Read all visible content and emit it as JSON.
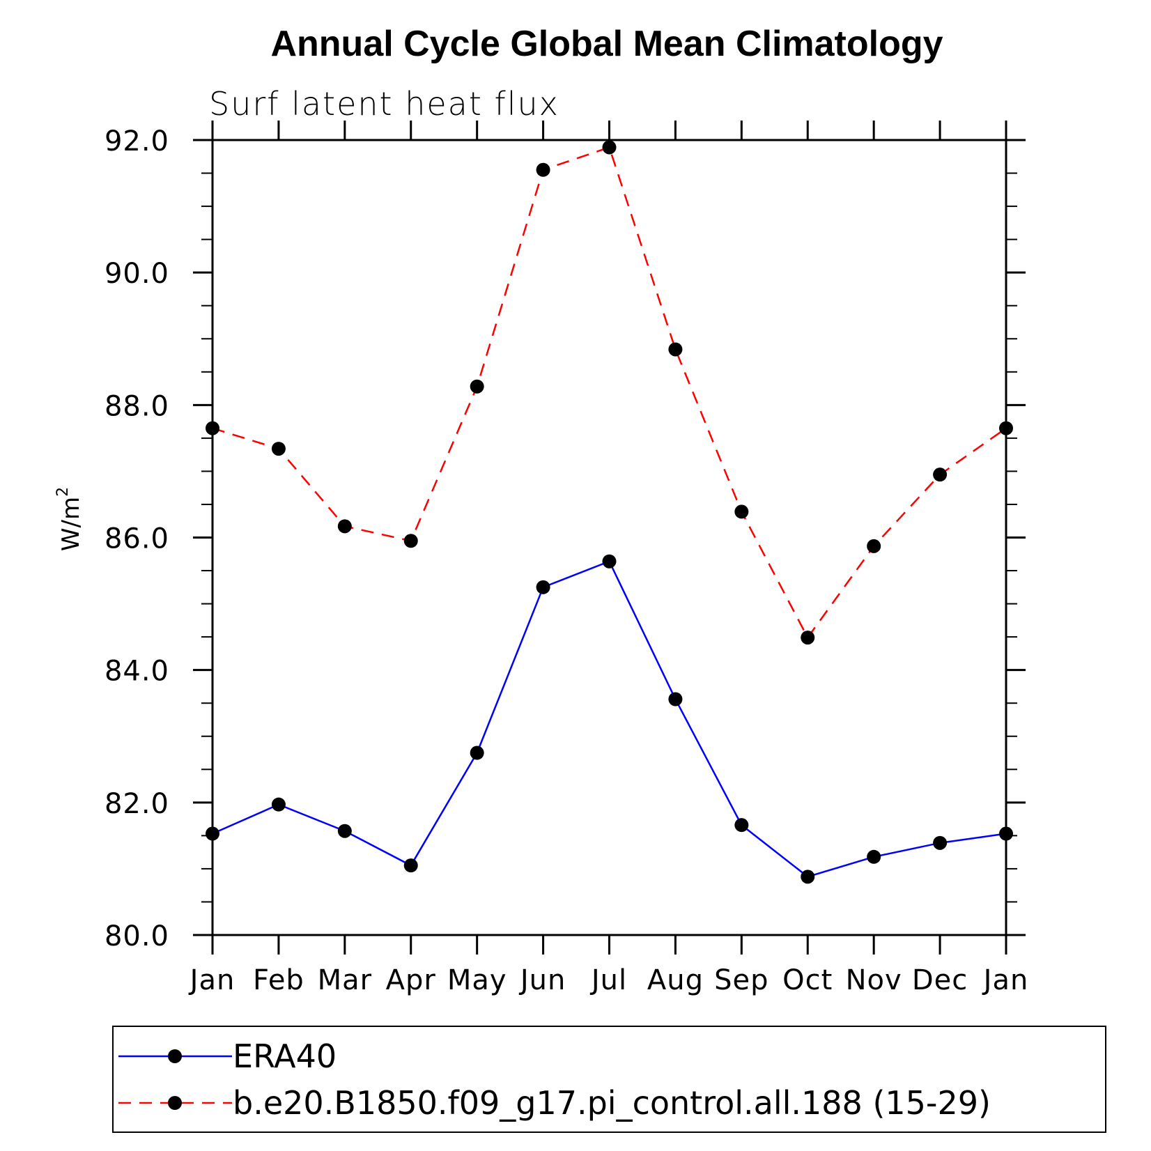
{
  "chart_data": {
    "type": "line",
    "title": "Annual Cycle Global Mean Climatology",
    "subtitle": "Surf latent heat flux",
    "ylabel_base": "W/m",
    "ylabel_sup": "2",
    "ylim": [
      80,
      92
    ],
    "y_major_ticks": [
      80,
      82,
      84,
      86,
      88,
      90,
      92
    ],
    "y_tick_labels": [
      "80.0",
      "82.0",
      "84.0",
      "86.0",
      "88.0",
      "90.0",
      "92.0"
    ],
    "y_minor_step": 0.5,
    "categories": [
      "Jan",
      "Feb",
      "Mar",
      "Apr",
      "May",
      "Jun",
      "Jul",
      "Aug",
      "Sep",
      "Oct",
      "Nov",
      "Dec",
      "Jan"
    ],
    "series": [
      {
        "name": "ERA40",
        "color": "#0000ff",
        "dash": "solid",
        "values": [
          81.53,
          81.97,
          81.57,
          81.05,
          82.75,
          85.25,
          85.64,
          83.56,
          81.66,
          80.88,
          81.18,
          81.39,
          81.53
        ]
      },
      {
        "name": "b.e20.B1850.f09_g17.pi_control.all.188 (15-29)",
        "color": "#ff0000",
        "dash": "dashed",
        "values": [
          87.65,
          87.34,
          86.17,
          85.95,
          88.28,
          91.55,
          91.89,
          88.84,
          86.39,
          84.49,
          85.87,
          86.95,
          87.65
        ]
      }
    ],
    "legend_position": "bottom"
  }
}
